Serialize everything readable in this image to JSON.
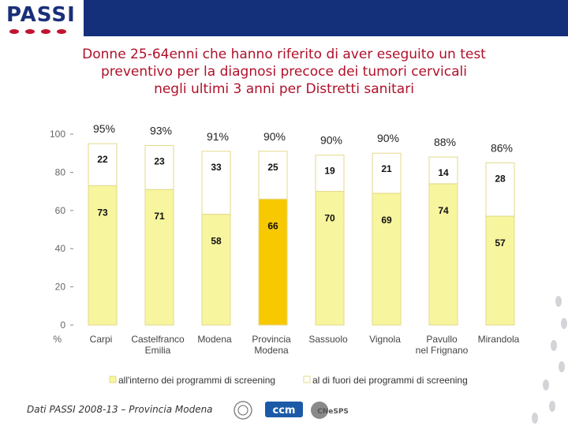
{
  "header": {
    "logo_text": "PASSI",
    "logo_icon": "passi-logo"
  },
  "title_lines": [
    "Donne 25-64enni che hanno riferito di aver eseguito un test",
    "preventivo per la diagnosi precoce dei tumori cervicali",
    "negli ultimi 3 anni per Distretti sanitari"
  ],
  "footer": {
    "source": "Dati PASSI 2008-13 – Provincia Modena",
    "partners": [
      "ministero-seal-icon",
      "ccm-logo-icon",
      "cnesps-logo-icon"
    ],
    "partner_labels": [
      "ccm",
      "CNeSPS"
    ]
  },
  "colors": {
    "header_bar": "#14307a",
    "title": "#b0102a",
    "bar_inside": "#f7f59e",
    "bar_inside_highlight": "#f8c800",
    "bar_outside": "#ffffff",
    "bar_border": "#e3d98a",
    "decor_feet": "#d4d4d8"
  },
  "chart_data": {
    "type": "bar",
    "stacked": true,
    "categories": [
      [
        "Carpi"
      ],
      [
        "Castelfranco",
        "Emilia"
      ],
      [
        "Modena"
      ],
      [
        "Provincia",
        "Modena"
      ],
      [
        "Sassuolo"
      ],
      [
        "Vignola"
      ],
      [
        "Pavullo",
        "nel Frignano"
      ],
      [
        "Mirandola"
      ]
    ],
    "series": [
      {
        "name": "all'interno dei programmi di screening",
        "values": [
          73,
          71,
          58,
          66,
          70,
          69,
          74,
          57
        ]
      },
      {
        "name": "al di fuori dei programmi di screening",
        "values": [
          22,
          23,
          33,
          25,
          19,
          21,
          14,
          28
        ]
      }
    ],
    "totals": [
      "95%",
      "93%",
      "91%",
      "90%",
      "90%",
      "90%",
      "88%",
      "86%"
    ],
    "highlight_index": 3,
    "ylim": [
      0,
      100
    ],
    "yticks": [
      0,
      20,
      40,
      60,
      80,
      100
    ],
    "yunit": "%",
    "legend_position": "bottom",
    "grid": false
  }
}
